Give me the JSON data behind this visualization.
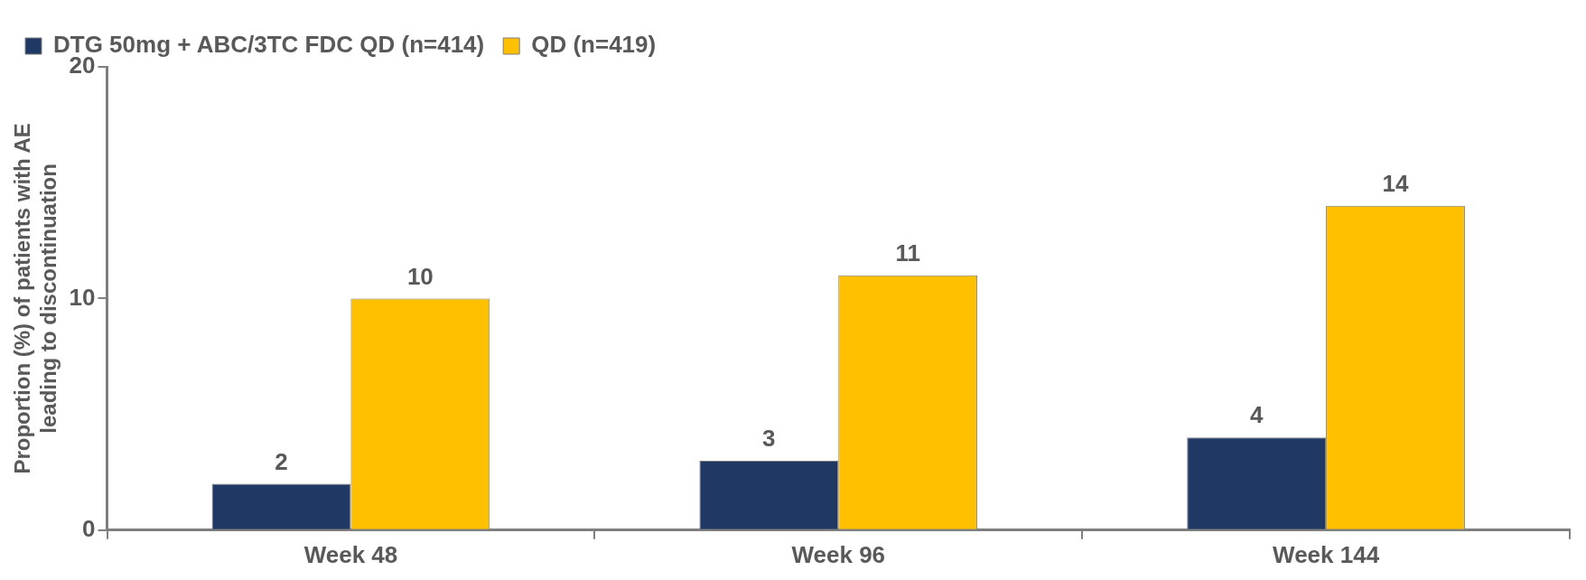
{
  "chart_data": {
    "type": "bar",
    "ylabel": "Proportion (%) of patients with AE leading to discontinuation",
    "categories": [
      "Week 48",
      "Week 96",
      "Week 144"
    ],
    "series": [
      {
        "name": "DTG 50mg + ABC/3TC FDC QD (n=414)",
        "color": "#1f3864",
        "values": [
          2,
          3,
          4
        ]
      },
      {
        "name": "QD (n=419)",
        "color": "#ffc000",
        "values": [
          10,
          11,
          14
        ]
      }
    ],
    "ylim": [
      0,
      20
    ],
    "yticks": [
      0,
      10,
      20
    ],
    "grid": false,
    "legend": "top left",
    "data_labels": true
  }
}
